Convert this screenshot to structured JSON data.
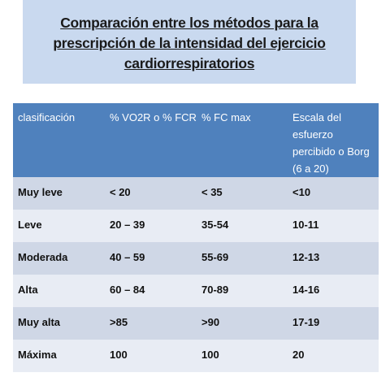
{
  "title": {
    "line1": "Comparación entre los métodos para la",
    "line2": "prescripción de la intensidad del ejercicio",
    "line3": "cardiorrespiratorios "
  },
  "table": {
    "headers": [
      "clasificación",
      "%  VO2R o % FCR",
      "% FC max",
      "Escala del esfuerzo percibido o Borg (6 a 20)"
    ],
    "rows": [
      [
        "Muy leve",
        "< 20",
        "< 35",
        "<10"
      ],
      [
        "Leve",
        "20 – 39",
        "35-54",
        "10-11"
      ],
      [
        "Moderada",
        "40 – 59",
        "55-69",
        "12-13"
      ],
      [
        "Alta",
        "60 – 84",
        "70-89",
        "14-16"
      ],
      [
        "Muy alta",
        ">85",
        ">90",
        "17-19"
      ],
      [
        "Máxima",
        "100",
        "100",
        "20"
      ]
    ]
  },
  "colors": {
    "title_bg": "#c9d9ef",
    "header_bg": "#4f81bd",
    "row_dark": "#cfd7e6",
    "row_light": "#e8ecf4"
  }
}
